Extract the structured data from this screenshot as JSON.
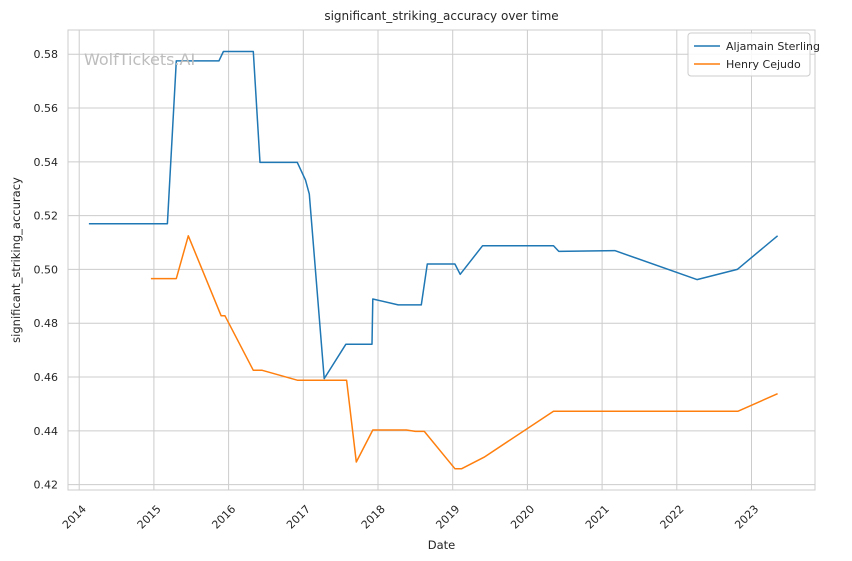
{
  "chart_data": {
    "type": "line",
    "title": "significant_striking_accuracy over time",
    "xlabel": "Date",
    "ylabel": "significant_striking_accuracy",
    "watermark": "WolfTickets.AI",
    "xlim": [
      2013.85,
      2023.85
    ],
    "ylim": [
      0.418,
      0.589
    ],
    "x_ticks": [
      2014,
      2015,
      2016,
      2017,
      2018,
      2019,
      2020,
      2021,
      2022,
      2023
    ],
    "y_ticks": [
      0.42,
      0.44,
      0.46,
      0.48,
      0.5,
      0.52,
      0.54,
      0.56,
      0.58
    ],
    "grid": true,
    "legend_position": "top-right",
    "colors": {
      "Aljamain Sterling": "#1f77b4",
      "Henry Cejudo": "#ff7f0e"
    },
    "series": [
      {
        "name": "Aljamain Sterling",
        "points": [
          [
            2014.13,
            0.517
          ],
          [
            2015.18,
            0.517
          ],
          [
            2015.3,
            0.5775
          ],
          [
            2015.87,
            0.5775
          ],
          [
            2015.93,
            0.581
          ],
          [
            2016.33,
            0.581
          ],
          [
            2016.42,
            0.5398
          ],
          [
            2016.92,
            0.5398
          ],
          [
            2017.03,
            0.5332
          ],
          [
            2017.08,
            0.528
          ],
          [
            2017.28,
            0.4594
          ],
          [
            2017.57,
            0.4722
          ],
          [
            2017.92,
            0.4722
          ],
          [
            2017.93,
            0.489
          ],
          [
            2018.27,
            0.4868
          ],
          [
            2018.58,
            0.4868
          ],
          [
            2018.66,
            0.502
          ],
          [
            2019.03,
            0.502
          ],
          [
            2019.1,
            0.4982
          ],
          [
            2019.4,
            0.5088
          ],
          [
            2020.35,
            0.5088
          ],
          [
            2020.42,
            0.5067
          ],
          [
            2021.17,
            0.507
          ],
          [
            2022.27,
            0.4962
          ],
          [
            2022.81,
            0.5
          ],
          [
            2023.35,
            0.5125
          ]
        ]
      },
      {
        "name": "Henry Cejudo",
        "points": [
          [
            2014.96,
            0.4966
          ],
          [
            2015.3,
            0.4966
          ],
          [
            2015.46,
            0.5125
          ],
          [
            2015.9,
            0.4828
          ],
          [
            2015.95,
            0.4828
          ],
          [
            2016.33,
            0.4625
          ],
          [
            2016.45,
            0.4625
          ],
          [
            2016.92,
            0.4588
          ],
          [
            2017.58,
            0.4588
          ],
          [
            2017.71,
            0.4284
          ],
          [
            2017.93,
            0.4403
          ],
          [
            2018.38,
            0.4403
          ],
          [
            2018.5,
            0.4398
          ],
          [
            2018.62,
            0.4398
          ],
          [
            2019.03,
            0.4259
          ],
          [
            2019.12,
            0.4259
          ],
          [
            2019.42,
            0.4302
          ],
          [
            2020.35,
            0.4473
          ],
          [
            2022.82,
            0.4473
          ],
          [
            2023.35,
            0.4538
          ]
        ]
      }
    ]
  }
}
